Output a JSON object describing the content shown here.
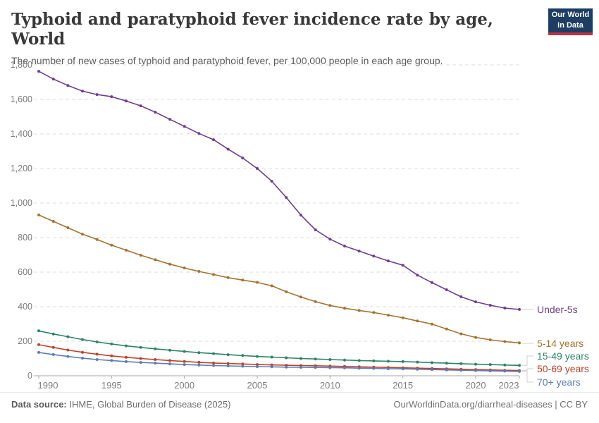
{
  "header": {
    "logo": {
      "line1": "Our World",
      "line2": "in Data",
      "bg_color": "#1d3d63",
      "accent_color": "#bf3041"
    }
  },
  "chart_data": {
    "type": "line",
    "title": "Typhoid and paratyphoid fever incidence rate by age, World",
    "subtitle": "The number of new cases of typhoid and paratyphoid fever, per 100,000 people in each age group.",
    "xlabel": "",
    "ylabel": "",
    "x": [
      1990,
      1991,
      1992,
      1993,
      1994,
      1995,
      1996,
      1997,
      1998,
      1999,
      2000,
      2001,
      2002,
      2003,
      2004,
      2005,
      2006,
      2007,
      2008,
      2009,
      2010,
      2011,
      2012,
      2013,
      2014,
      2015,
      2016,
      2017,
      2018,
      2019,
      2020,
      2021,
      2022,
      2023
    ],
    "xticks": [
      1990,
      1995,
      2000,
      2005,
      2010,
      2015,
      2020,
      2023
    ],
    "ylim": [
      0,
      1800
    ],
    "ytick_step": 200,
    "grid": "horizontal-dashed",
    "legend_position": "right-of-lines",
    "series": [
      {
        "name": "Under-5s",
        "color": "#6D3E91",
        "values": [
          1763,
          1718,
          1681,
          1648,
          1628,
          1616,
          1591,
          1563,
          1526,
          1485,
          1444,
          1403,
          1367,
          1312,
          1261,
          1200,
          1126,
          1032,
          930,
          845,
          791,
          751,
          722,
          693,
          665,
          640,
          583,
          539,
          498,
          457,
          428,
          408,
          392,
          384
        ]
      },
      {
        "name": "5-14 years",
        "color": "#A5732F",
        "values": [
          931,
          894,
          857,
          820,
          789,
          756,
          727,
          698,
          672,
          646,
          624,
          604,
          586,
          568,
          554,
          541,
          521,
          486,
          456,
          429,
          407,
          391,
          378,
          366,
          351,
          336,
          317,
          299,
          271,
          243,
          222,
          208,
          198,
          190
        ]
      },
      {
        "name": "15-49 years",
        "color": "#2C8465",
        "values": [
          260,
          242,
          226,
          210,
          196,
          184,
          173,
          164,
          156,
          148,
          141,
          134,
          128,
          122,
          117,
          112,
          108,
          104,
          100,
          97,
          94,
          91,
          88,
          86,
          84,
          82,
          79,
          76,
          73,
          70,
          67,
          65,
          62,
          60
        ]
      },
      {
        "name": "50-69 years",
        "color": "#BE4129",
        "values": [
          180,
          164,
          149,
          136,
          125,
          115,
          107,
          100,
          94,
          88,
          83,
          78,
          74,
          71,
          68,
          65,
          63,
          61,
          59,
          58,
          56,
          54,
          52,
          50,
          48,
          46,
          44,
          42,
          40,
          38,
          36,
          34,
          32,
          30
        ]
      },
      {
        "name": "70+ years",
        "color": "#5C7DB5",
        "values": [
          135,
          123,
          112,
          102,
          94,
          88,
          82,
          77,
          73,
          69,
          65,
          62,
          59,
          57,
          55,
          53,
          52,
          50,
          49,
          48,
          47,
          46,
          44,
          43,
          41,
          40,
          38,
          36,
          34,
          32,
          30,
          28,
          27,
          25
        ]
      }
    ]
  },
  "footer": {
    "source_label": "Data source:",
    "source_text": " IHME, Global Burden of Disease (2025)",
    "credit": "OurWorldinData.org/diarrheal-diseases | CC BY"
  }
}
